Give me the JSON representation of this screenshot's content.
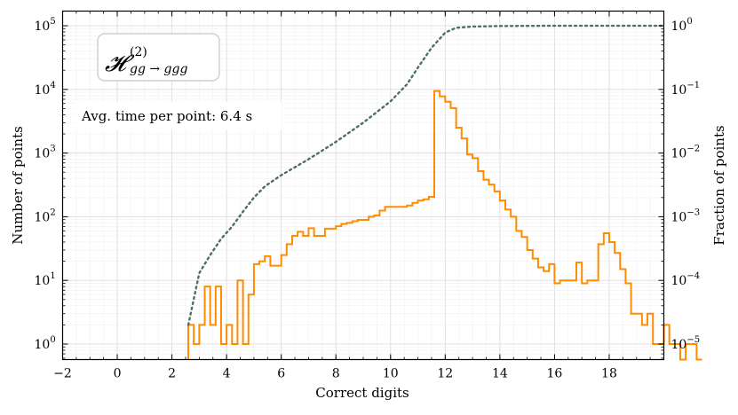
{
  "chart_data": {
    "type": "line",
    "title": "",
    "xlabel": "Correct digits",
    "ylabel": "Number of points",
    "ylabel_right": "Fraction of points",
    "xlim": [
      -2,
      20
    ],
    "ylim": [
      0.57,
      170000
    ],
    "y_scale": "log",
    "x_ticks": [
      -2,
      0,
      2,
      4,
      6,
      8,
      10,
      12,
      14,
      16,
      18
    ],
    "y_ticks_left": [
      {
        "value": 1,
        "base": "10",
        "exp": "0"
      },
      {
        "value": 10,
        "base": "10",
        "exp": "1"
      },
      {
        "value": 100,
        "base": "10",
        "exp": "2"
      },
      {
        "value": 1000,
        "base": "10",
        "exp": "3"
      },
      {
        "value": 10000,
        "base": "10",
        "exp": "4"
      },
      {
        "value": 100000,
        "base": "10",
        "exp": "5"
      }
    ],
    "y_ticks_right": [
      {
        "value": 1e-05,
        "base": "10",
        "exp": "−5"
      },
      {
        "value": 0.0001,
        "base": "10",
        "exp": "−4"
      },
      {
        "value": 0.001,
        "base": "10",
        "exp": "−3"
      },
      {
        "value": 0.01,
        "base": "10",
        "exp": "−2"
      },
      {
        "value": 0.1,
        "base": "10",
        "exp": "−1"
      },
      {
        "value": 1,
        "base": "10",
        "exp": "0"
      }
    ],
    "right_axis_scale_factor": 1e-05,
    "grid": true,
    "bin_width": 0.2,
    "series": [
      {
        "style": "step",
        "color": "#ff8c00",
        "bin_start": 2.6,
        "values": [
          2,
          1,
          2,
          8,
          2,
          8,
          1,
          2,
          1,
          10,
          1,
          6,
          18,
          20,
          24,
          17,
          17,
          25,
          37,
          50,
          58,
          50,
          66,
          50,
          50,
          65,
          65,
          71,
          77,
          80,
          85,
          89,
          89,
          100,
          105,
          125,
          143,
          143,
          143,
          143,
          150,
          165,
          180,
          188,
          205,
          225,
          234,
          257,
          280,
          292,
          304,
          320,
          353,
          373,
          397,
          421,
          448,
          490,
          540,
          612,
          739,
          868,
          1016,
          1509,
          2502,
          3154,
          3709,
          4202,
          4654,
          5213,
          5975,
          6906,
          7885,
          8869,
          9440,
          8964,
          7311,
          5102,
          3229,
          2075,
          1360,
          937,
          662,
          472,
          332,
          231,
          158,
          111,
          68,
          42,
          28,
          18,
          9,
          12,
          6,
          4,
          3,
          4,
          4,
          2,
          3,
          3
        ],
        "tail_values": [
          9,
          10,
          10,
          10,
          19,
          9,
          10,
          10,
          37,
          55,
          40,
          27,
          15,
          9,
          3,
          3,
          2,
          3,
          1,
          1,
          2,
          1,
          1,
          0.5,
          1,
          1,
          0.5
        ]
      },
      {
        "style": "dotted",
        "color": "#4f6d6a",
        "points": [
          [
            2.6,
            2
          ],
          [
            3.0,
            13
          ],
          [
            3.4,
            25
          ],
          [
            3.8,
            45
          ],
          [
            4.2,
            70
          ],
          [
            4.6,
            120
          ],
          [
            5.0,
            200
          ],
          [
            5.4,
            300
          ],
          [
            6.0,
            450
          ],
          [
            7.0,
            800
          ],
          [
            8.0,
            1500
          ],
          [
            9.0,
            3000
          ],
          [
            10.0,
            6500
          ],
          [
            10.6,
            12000
          ],
          [
            11.0,
            22000
          ],
          [
            11.5,
            45000
          ],
          [
            12.0,
            78000
          ],
          [
            12.4,
            93000
          ],
          [
            13.0,
            97000
          ],
          [
            14.0,
            99000
          ],
          [
            16.0,
            100000
          ],
          [
            18.0,
            100000
          ],
          [
            20.0,
            100000
          ]
        ]
      }
    ]
  },
  "annotations": {
    "label_main": "𝓗",
    "label_sub": "gg → ggg",
    "label_sup": "(2)",
    "avg_time": "Avg. time per point: 6.4 s"
  }
}
